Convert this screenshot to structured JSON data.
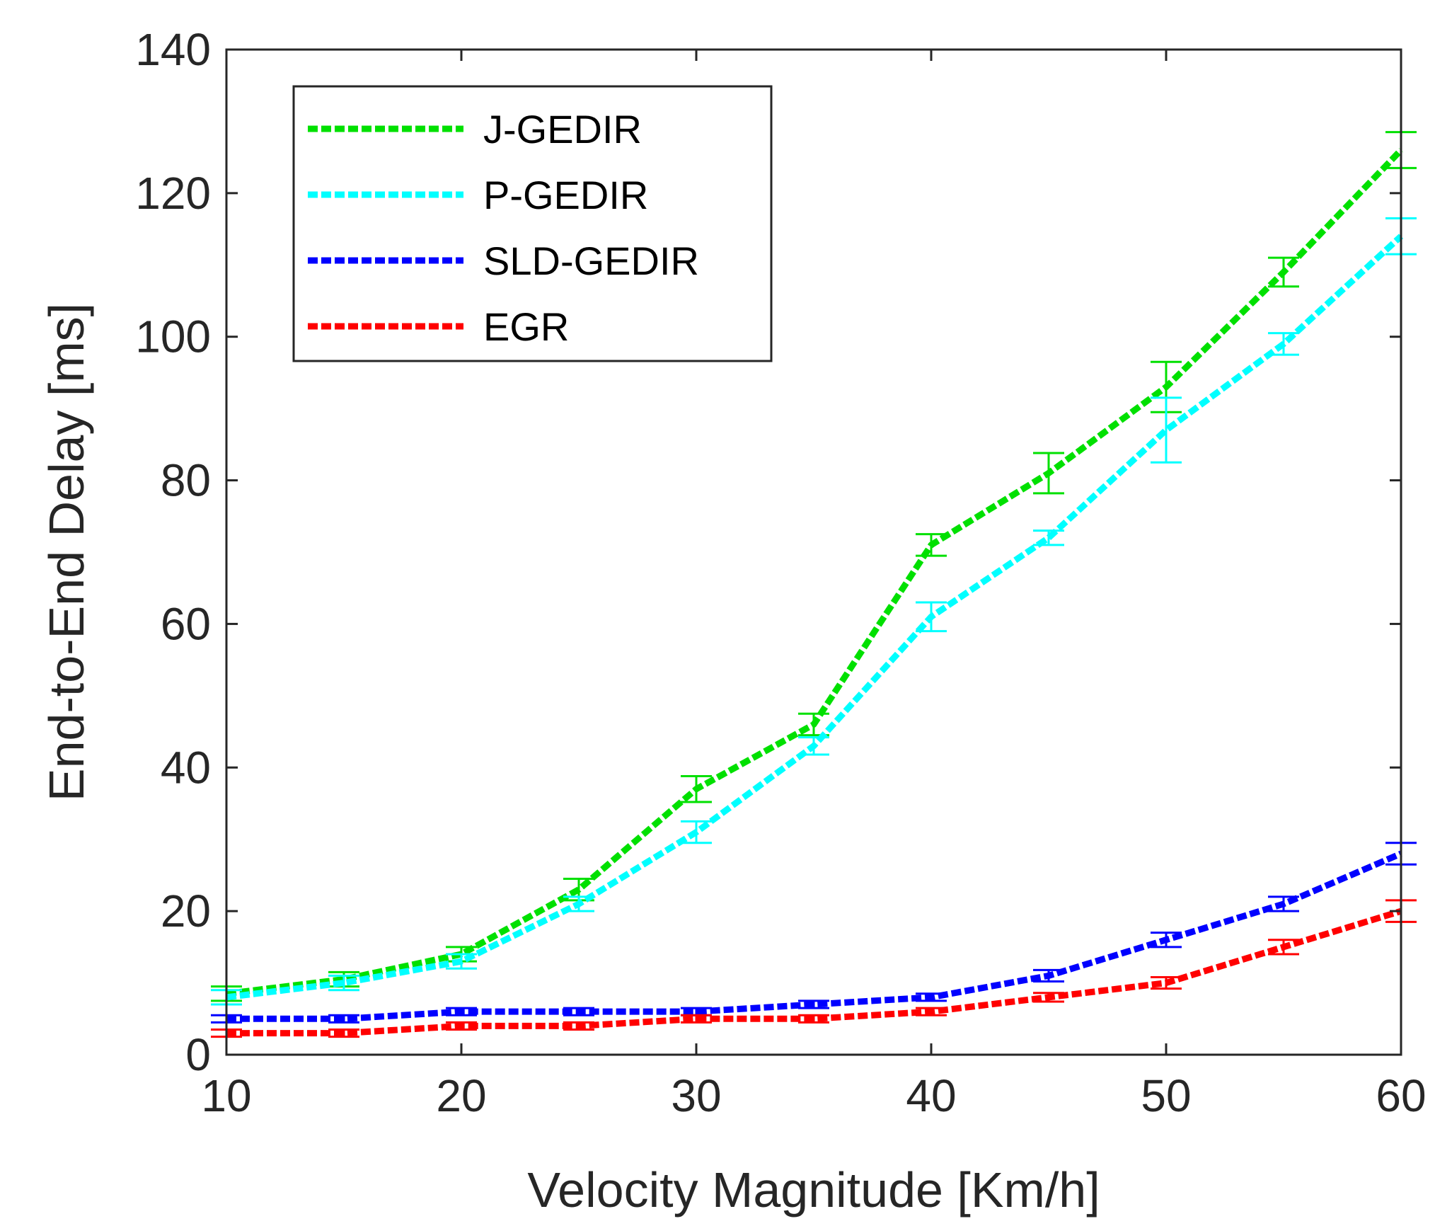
{
  "chart_data": {
    "type": "line",
    "title": "",
    "xlabel": "Velocity Magnitude  [Km/h]",
    "ylabel": "End-to-End Delay [ms]",
    "xlim": [
      10,
      60
    ],
    "ylim": [
      0,
      140
    ],
    "xticks": [
      10,
      20,
      30,
      40,
      50,
      60
    ],
    "yticks": [
      0,
      20,
      40,
      60,
      80,
      100,
      120,
      140
    ],
    "grid": false,
    "legend_position": "top-left",
    "x": [
      10,
      15,
      20,
      25,
      30,
      35,
      40,
      45,
      50,
      55,
      60
    ],
    "series": [
      {
        "name": "J-GEDIR",
        "color": "#00e000",
        "values": [
          8.5,
          10.5,
          14,
          23,
          37,
          46,
          71,
          81,
          93,
          109,
          126
        ],
        "errors": [
          1,
          1,
          1,
          1.5,
          1.8,
          1.5,
          1.5,
          2.8,
          3.5,
          2,
          2.5
        ]
      },
      {
        "name": "P-GEDIR",
        "color": "#00ffff",
        "values": [
          8,
          10,
          13,
          21,
          31,
          43,
          61,
          72,
          87,
          99,
          114
        ],
        "errors": [
          1,
          1,
          1,
          1,
          1.5,
          1.2,
          2,
          1,
          4.5,
          1.5,
          2.5
        ]
      },
      {
        "name": "SLD-GEDIR",
        "color": "#0000ff",
        "values": [
          5,
          5,
          6,
          6,
          6,
          7,
          8,
          11,
          16,
          21,
          28
        ],
        "errors": [
          0.5,
          0.5,
          0.5,
          0.5,
          0.5,
          0.5,
          0.5,
          0.8,
          1,
          1,
          1.5
        ]
      },
      {
        "name": "EGR",
        "color": "#ff0000",
        "values": [
          3,
          3,
          4,
          4,
          5,
          5,
          6,
          8,
          10,
          15,
          20
        ],
        "errors": [
          0.5,
          0.5,
          0.5,
          0.5,
          0.5,
          0.5,
          0.5,
          0.6,
          0.8,
          1,
          1.5
        ]
      }
    ]
  }
}
